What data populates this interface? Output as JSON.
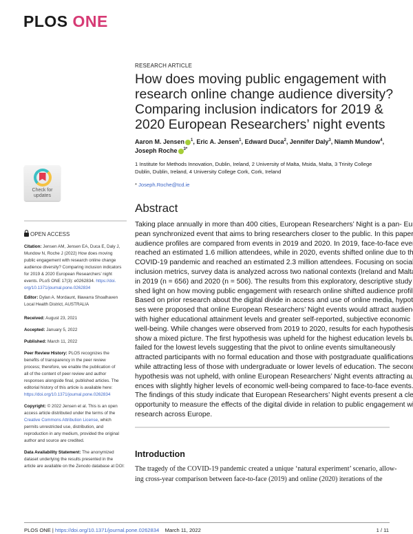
{
  "journal": {
    "logo_a": "PLOS",
    "logo_b": "ONE"
  },
  "article_type": "RESEARCH ARTICLE",
  "title_lines": [
    "How does moving public engagement with",
    "research online change audience diversity?",
    "Comparing inclusion indicators for 2019 &",
    "2020 European Researchers’ night events"
  ],
  "authors": [
    {
      "name": "Aaron M. Jensen",
      "sup": "1",
      "orcid": true
    },
    {
      "name": "Eric A. Jensen",
      "sup": "1"
    },
    {
      "name": "Edward Duca",
      "sup": "2"
    },
    {
      "name": "Jennifer Daly",
      "sup": "3"
    },
    {
      "name": "Niamh Mundow",
      "sup": "4"
    },
    {
      "name": "Joseph Roche",
      "sup": "3*",
      "orcid": true
    }
  ],
  "affiliations": [
    [
      "1",
      "Institute for Methods Innovation, Dublin, Ireland,"
    ],
    [
      "2",
      "University of Malta, Msida, Malta,"
    ],
    [
      "3",
      "Trinity College Dublin, Dublin, Ireland,"
    ],
    [
      "4",
      "University College Cork, Cork, Ireland"
    ]
  ],
  "affiliations_lines": [
    "1  Institute for Methods Innovation, Dublin, Ireland, 2  University of Malta, Msida, Malta, 3  Trinity College",
    "Dublin, Dublin, Ireland, 4  University College Cork, Cork, Ireland"
  ],
  "corresponding": {
    "mark": "*",
    "email": "Joseph.Roche@tcd.ie"
  },
  "badge": {
    "line1": "Check for",
    "line2": "updates"
  },
  "open_access": "OPEN ACCESS",
  "sidebar": {
    "citation_label": "Citation:",
    "citation_lines": [
      "Jensen AM, Jensen EA, Duca E, Daly J,",
      "Mundow N, Roche J (2022) How does moving",
      "public engagement with research online change",
      "audience diversity? Comparing inclusion indicators",
      "for 2019 & 2020 European Researchers’ night",
      "events. PLoS ONE 17(3): e0262834. "
    ],
    "citation_link_a": "https://doi.",
    "citation_link_b": "org/10.1371/journal.pone.0262834",
    "editor_label": "Editor:",
    "editor_lines": [
      "Dylan A. Mordaunt, Illawarra Shoalhaven",
      "Local Health District, AUSTRALIA"
    ],
    "received_label": "Received:",
    "received": "August 23, 2021",
    "accepted_label": "Accepted:",
    "accepted": "January 5, 2022",
    "published_label": "Published:",
    "published": "March 11, 2022",
    "peer_label": "Peer Review History:",
    "peer_lines": [
      "PLOS recognizes the",
      "benefits of transparency in the peer review",
      "process; therefore, we enable the publication of",
      "all of the content of peer review and author",
      "responses alongside final, published articles. The",
      "editorial history of this article is available here:"
    ],
    "peer_link": "https://doi.org/10.1371/journal.pone.0262834",
    "copyright_label": "Copyright:",
    "copyright_first": "© 2022 Jensen et al. This is an open",
    "copyright_l2": "access article distributed under the terms of the",
    "copyright_link": "Creative Commons Attribution License",
    "copyright_l3": ", which",
    "copyright_rest": [
      "permits unrestricted use, distribution, and",
      "reproduction in any medium, provided the original",
      "author and source are credited."
    ],
    "data_label": "Data Availability Statement:",
    "data_lines": [
      "The anonymized",
      "dataset underlying the results presented in the",
      "article are available on the Zenodo database at DOI:"
    ]
  },
  "abstract": {
    "heading": "Abstract",
    "lines": [
      "Taking place annually in more than 400 cities, European Researchers’ Night is a pan- Euro-",
      "pean synchronized event that aims to bring researchers closer to the public. In this paper",
      "audience profiles are compared from events in 2019 and 2020. In 2019, face-to-face events",
      "reached an estimated 1.6 million attendees, while in 2020, events shifted online due to the",
      "COVID-19 pandemic and reached an estimated 2.3 million attendees. Focusing on social",
      "inclusion metrics, survey data is analyzed across two national contexts (Ireland and Malta)",
      "in 2019 (n = 656) and 2020 (n = 506). The results from this exploratory, descriptive study",
      "shed light on how moving public engagement with research online shifted audience profiles.",
      "Based on prior research about the digital divide in access and use of online media, hypothe-",
      "ses were proposed that online European Researchers’ Night events would attract audiences",
      "with higher educational attainment levels and greater self-reported, subjective economic",
      "well-being. While changes were observed from 2019 to 2020, results for each hypothesis",
      "show a mixed picture. The first hypothesis was upheld for the highest education levels but",
      "failed for the lowest levels suggesting that the pivot to online events simultaneously",
      "attracted participants with no formal education and those with postgraduate qualifications,",
      "while attracting less of those with undergraduate or lower levels of education. The second",
      "hypothesis was not upheld, with online European Researchers’ Night events attracting audi-",
      "ences with slightly higher levels of economic well-being compared to face-to-face events.",
      "The findings of this study indicate that European Researchers’ Night events present a clear",
      "opportunity to measure the effects of the digital divide in relation to public engagement with",
      "research across Europe."
    ]
  },
  "introduction": {
    "heading": "Introduction",
    "lines": [
      "The tragedy of the COVID-19 pandemic created a unique ‘natural experiment’ scenario, allow-",
      "ing cross-year comparison between face-to-face (2019) and online (2020) iterations of the"
    ]
  },
  "footer": {
    "journal": "PLOS ONE | ",
    "doi": "https://doi.org/10.1371/journal.pone.0262834",
    "date": "March 11, 2022",
    "page": "1 / 11"
  },
  "colors": {
    "brand": "#d63a74",
    "link": "#3b64c6",
    "orcid": "#a6ce39"
  }
}
